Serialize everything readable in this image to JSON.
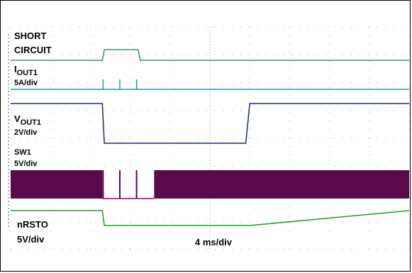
{
  "chart_data": {
    "type": "line",
    "title": "",
    "x_unit_label": "4 ms/div",
    "x_divisions": 10,
    "y_divisions": 8,
    "grid": true,
    "x": [
      0,
      2.3,
      2.35,
      3.2,
      3.25,
      4.6,
      5.9,
      6.0,
      10
    ],
    "series": [
      {
        "name": "SHORT CIRCUIT",
        "color": "#1a7a5e",
        "values": [
          0,
          0,
          1,
          1,
          0,
          0,
          0,
          0,
          0
        ]
      },
      {
        "name": "IOUT1",
        "label_main": "I",
        "label_sub": "OUT1",
        "label_scale": "5A/div",
        "color": "#1aa39a",
        "spikes_x": [
          2.32,
          2.74,
          3.16
        ],
        "values": [
          0,
          0,
          0,
          0,
          0,
          0,
          0,
          0,
          0
        ]
      },
      {
        "name": "VOUT1",
        "label_main": "V",
        "label_sub": "OUT1",
        "label_scale": "2V/div",
        "color": "#1a2a7a",
        "values": [
          1,
          1,
          0,
          0,
          0,
          0,
          0,
          1,
          1
        ]
      },
      {
        "name": "SW1",
        "label_scale": "5V/div",
        "color": "#5a0a4a",
        "switching_ranges": [
          [
            0,
            2.3
          ],
          [
            3.6,
            10
          ]
        ],
        "values": [
          1,
          1,
          0,
          0,
          0,
          0,
          0,
          1,
          1
        ]
      },
      {
        "name": "nRSTO",
        "label_scale": "5V/div",
        "color": "#1aa02a",
        "values": [
          1,
          1,
          0,
          0,
          0,
          0,
          0,
          0,
          1
        ]
      }
    ],
    "short_circuit_label_1": "SHORT",
    "short_circuit_label_2": "CIRCUIT"
  }
}
